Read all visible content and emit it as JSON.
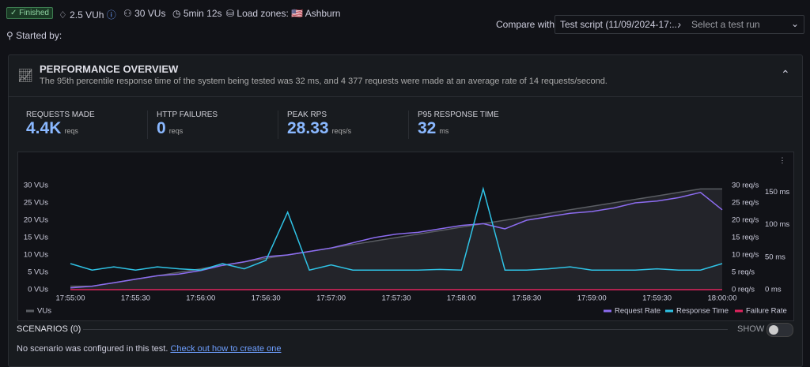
{
  "header": {
    "status": "Finished",
    "vuh": "2.5 VUh",
    "vus": "30 VUs",
    "duration": "5min 12s",
    "load_zones_label": "Load zones:",
    "load_zone": "Ashburn",
    "started_by": "Started by:",
    "compare_label": "Compare with",
    "compare_script": "Test script (11/09/2024-17:...",
    "select_placeholder": "Select a test run"
  },
  "overview": {
    "title": "PERFORMANCE OVERVIEW",
    "summary": "The 95th percentile response time of the system being tested was 32 ms, and 4 377 requests were made at an average rate of 14 requests/second."
  },
  "stats": [
    {
      "label": "REQUESTS MADE",
      "value": "4.4K",
      "unit": "reqs"
    },
    {
      "label": "HTTP FAILURES",
      "value": "0",
      "unit": "reqs"
    },
    {
      "label": "PEAK RPS",
      "value": "28.33",
      "unit": "reqs/s"
    },
    {
      "label": "P95 RESPONSE TIME",
      "value": "32",
      "unit": "ms"
    }
  ],
  "chart_data": {
    "type": "line",
    "x": [
      0,
      10,
      20,
      30,
      40,
      50,
      60,
      70,
      80,
      90,
      100,
      110,
      120,
      130,
      140,
      150,
      160,
      170,
      180,
      190,
      200,
      210,
      220,
      230,
      240,
      250,
      260,
      270,
      280,
      290,
      300
    ],
    "xlim": [
      0,
      300
    ],
    "xticks": [
      {
        "value": 0,
        "label": "17:55:00"
      },
      {
        "value": 30,
        "label": "17:55:30"
      },
      {
        "value": 60,
        "label": "17:56:00"
      },
      {
        "value": 90,
        "label": "17:56:30"
      },
      {
        "value": 120,
        "label": "17:57:00"
      },
      {
        "value": 150,
        "label": "17:57:30"
      },
      {
        "value": 180,
        "label": "17:58:00"
      },
      {
        "value": 210,
        "label": "17:58:30"
      },
      {
        "value": 240,
        "label": "17:59:00"
      },
      {
        "value": 270,
        "label": "17:59:30"
      },
      {
        "value": 300,
        "label": "18:00:00"
      }
    ],
    "ylim": [
      0,
      30
    ],
    "yticks": [
      {
        "value": 0,
        "label": "0 VUs"
      },
      {
        "value": 5,
        "label": "5 VUs"
      },
      {
        "value": 10,
        "label": "10 VUs"
      },
      {
        "value": 15,
        "label": "15 VUs"
      },
      {
        "value": 20,
        "label": "20 VUs"
      },
      {
        "value": 25,
        "label": "25 VUs"
      },
      {
        "value": 30,
        "label": "30 VUs"
      }
    ],
    "y2lim": [
      0,
      30
    ],
    "y2ticks": [
      {
        "value": 0,
        "label": "0 req/s"
      },
      {
        "value": 5,
        "label": "5 req/s"
      },
      {
        "value": 10,
        "label": "10 req/s"
      },
      {
        "value": 15,
        "label": "15 req/s"
      },
      {
        "value": 20,
        "label": "20 req/s"
      },
      {
        "value": 25,
        "label": "25 req/s"
      },
      {
        "value": 30,
        "label": "30 req/s"
      }
    ],
    "y3lim": [
      0,
      160
    ],
    "y3ticks": [
      {
        "value": 0,
        "label": "0 ms"
      },
      {
        "value": 50,
        "label": "50 ms"
      },
      {
        "value": 100,
        "label": "100 ms"
      },
      {
        "value": 150,
        "label": "150 ms"
      }
    ],
    "series": [
      {
        "name": "VUs",
        "color": "#5a5d63",
        "area": true,
        "values": [
          1,
          1,
          2,
          3,
          4,
          5,
          6,
          7,
          8,
          9,
          10,
          11,
          12,
          13,
          14,
          15,
          16,
          17,
          18,
          19,
          20,
          21,
          22,
          23,
          24,
          25,
          26,
          27,
          28,
          29,
          29
        ]
      },
      {
        "name": "Request Rate",
        "color": "#8c6cf0",
        "axis": "y2",
        "values": [
          0.5,
          1,
          2,
          3,
          4,
          4.5,
          5.5,
          7,
          8,
          9.5,
          10,
          11,
          12,
          13.5,
          15,
          16,
          16.5,
          17.5,
          18.5,
          19,
          17.5,
          20,
          21,
          22,
          22.5,
          23.5,
          25,
          25.5,
          26.5,
          28,
          23
        ]
      },
      {
        "name": "Response Time",
        "color": "#2fc3e6",
        "axis": "y3",
        "values": [
          40,
          30,
          35,
          30,
          35,
          32,
          30,
          40,
          32,
          45,
          119,
          30,
          38,
          30,
          30,
          30,
          30,
          31,
          30,
          155,
          30,
          30,
          32,
          35,
          30,
          30,
          30,
          32,
          30,
          30,
          40
        ]
      },
      {
        "name": "Failure Rate",
        "color": "#e0245e",
        "axis": "y2",
        "values": [
          0,
          0,
          0,
          0,
          0,
          0,
          0,
          0,
          0,
          0,
          0,
          0,
          0,
          0,
          0,
          0,
          0,
          0,
          0,
          0,
          0,
          0,
          0,
          0,
          0,
          0,
          0,
          0,
          0,
          0,
          0
        ]
      }
    ]
  },
  "scenarios": {
    "title": "SCENARIOS (0)",
    "toggle": "SHOW",
    "message": "No scenario was configured in this test.",
    "link": "Check out how to create one"
  }
}
